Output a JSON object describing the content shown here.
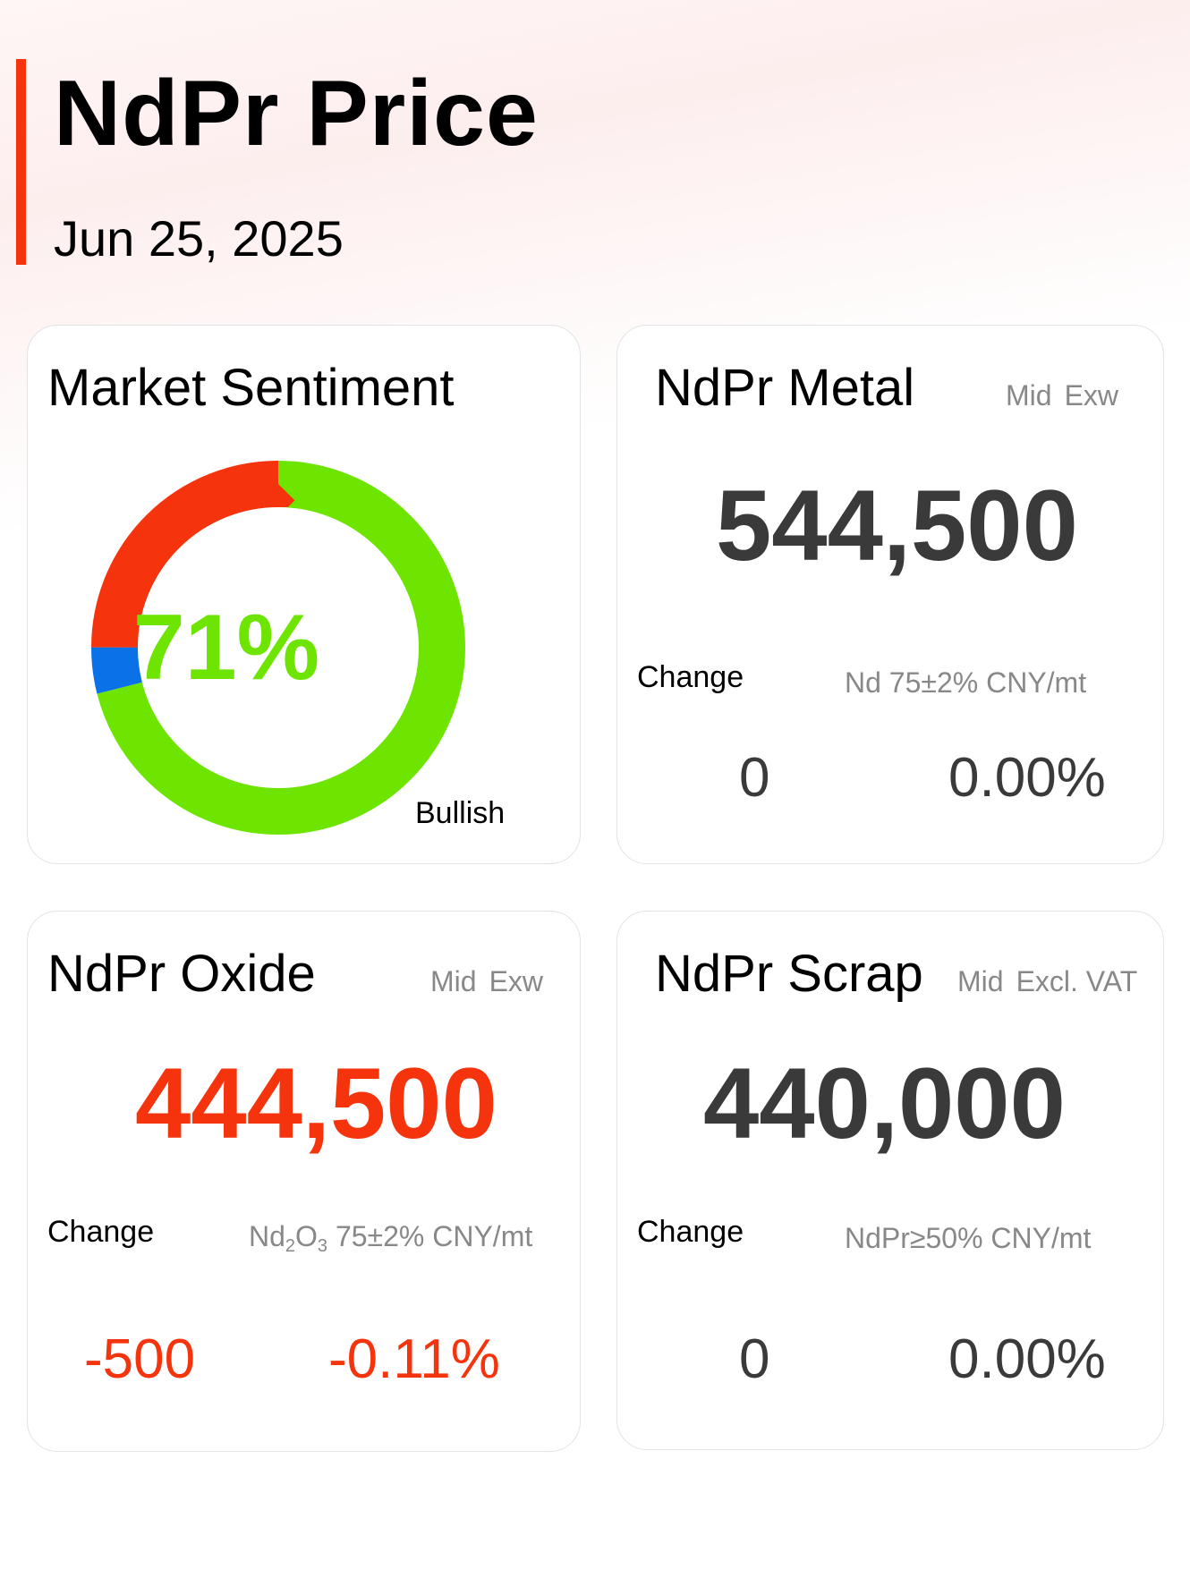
{
  "header": {
    "title": "NdPr Price",
    "date": "Jun 25, 2025",
    "accent_color": "#f5330c"
  },
  "sentiment": {
    "title": "Market Sentiment",
    "value_label": "71%",
    "caption": "Bullish",
    "segments": [
      {
        "key": "bullish",
        "fraction": 0.71,
        "color": "#6de500"
      },
      {
        "key": "neutral",
        "fraction": 0.04,
        "color": "#0a72e6"
      },
      {
        "key": "bearish",
        "fraction": 0.25,
        "color": "#f5330c"
      }
    ]
  },
  "metal": {
    "title": "NdPr Metal",
    "meta": [
      "Mid",
      "Exw"
    ],
    "price": "544,500",
    "change_label": "Change",
    "spec": "Nd 75±2% CNY/mt",
    "change_abs": "0",
    "change_pct": "0.00%"
  },
  "oxide": {
    "title": "NdPr Oxide",
    "meta": [
      "Mid",
      "Exw"
    ],
    "price": "444,500",
    "change_label": "Change",
    "spec_prefix": "Nd",
    "spec_sub1": "2",
    "spec_mid": "O",
    "spec_sub2": "3",
    "spec_suffix": " 75±2% CNY/mt",
    "change_abs": "-500",
    "change_pct": "-0.11%"
  },
  "scrap": {
    "title": "NdPr Scrap",
    "meta": [
      "Mid",
      "Excl. VAT"
    ],
    "price": "440,000",
    "change_label": "Change",
    "spec": "NdPr≥50% CNY/mt",
    "change_abs": "0",
    "change_pct": "0.00%"
  }
}
